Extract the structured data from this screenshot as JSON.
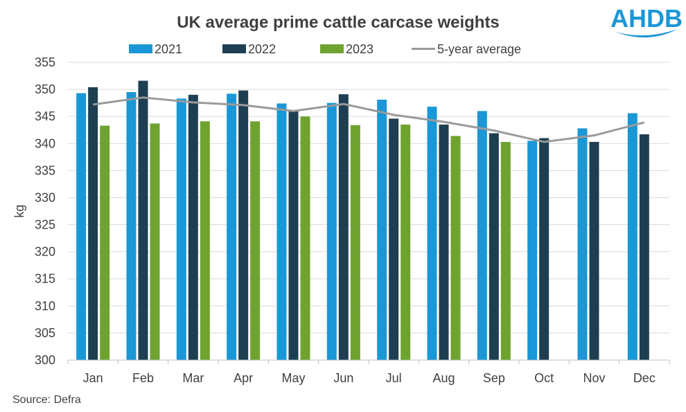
{
  "logo": {
    "text": "AHDB",
    "color": "#1a97d6"
  },
  "source": "Source: Defra",
  "chart_data": {
    "type": "bar",
    "title": "UK average prime cattle carcase weights",
    "xlabel": "",
    "ylabel": "kg",
    "ylim": [
      300,
      355
    ],
    "ytick_step": 5,
    "grid": true,
    "legend_position": "top",
    "categories": [
      "Jan",
      "Feb",
      "Mar",
      "Apr",
      "May",
      "Jun",
      "Jul",
      "Aug",
      "Sep",
      "Oct",
      "Nov",
      "Dec"
    ],
    "series": [
      {
        "name": "2021",
        "kind": "bar",
        "color": "#1a97d6",
        "values": [
          349.3,
          349.5,
          348.3,
          349.2,
          347.4,
          347.5,
          348.1,
          346.8,
          346.0,
          340.5,
          342.8,
          345.6
        ]
      },
      {
        "name": "2022",
        "kind": "bar",
        "color": "#1e3f52",
        "values": [
          350.4,
          351.6,
          349.0,
          349.8,
          346.1,
          349.1,
          344.6,
          343.5,
          341.9,
          341.0,
          340.3,
          341.7
        ]
      },
      {
        "name": "2023",
        "kind": "bar",
        "color": "#6fa32f",
        "values": [
          343.3,
          343.7,
          344.1,
          344.1,
          345.0,
          343.4,
          343.5,
          341.4,
          340.3,
          null,
          null,
          null
        ]
      },
      {
        "name": "5-year average",
        "kind": "line",
        "color": "#9a9a9a",
        "values": [
          347.2,
          348.5,
          347.6,
          347.1,
          346.0,
          347.3,
          345.3,
          344.0,
          342.4,
          340.3,
          341.5,
          343.9
        ]
      }
    ]
  }
}
